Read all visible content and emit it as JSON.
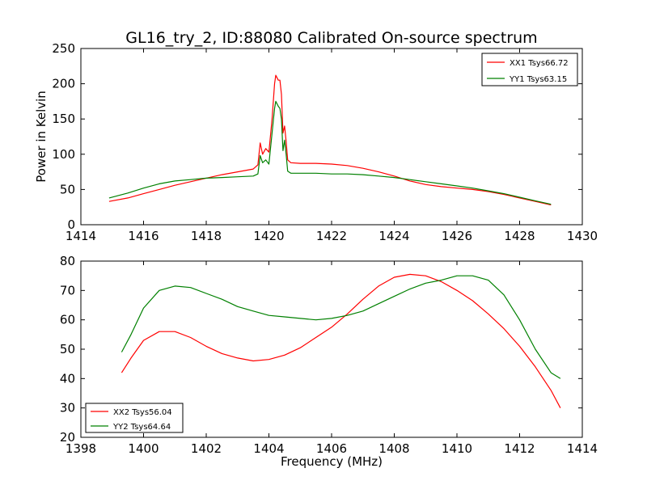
{
  "figure": {
    "title": "GL16_try_2, ID:88080 Calibrated On-source spectrum",
    "xlabel": "Frequency (MHz)"
  },
  "chart_data": [
    {
      "type": "line",
      "title": "GL16_try_2, ID:88080 Calibrated On-source spectrum",
      "xlabel": "",
      "ylabel": "Power in Kelvin",
      "xlim": [
        1414,
        1430
      ],
      "ylim": [
        0,
        250
      ],
      "xticks": [
        1414,
        1416,
        1418,
        1420,
        1422,
        1424,
        1426,
        1428,
        1430
      ],
      "yticks": [
        0,
        50,
        100,
        150,
        200,
        250
      ],
      "legend_position": "top-right",
      "grid": false,
      "series": [
        {
          "name": "XX1 Tsys66.72",
          "color": "#ff0000",
          "points": [
            [
              1414.9,
              33
            ],
            [
              1415.5,
              38
            ],
            [
              1416,
              44
            ],
            [
              1416.5,
              50
            ],
            [
              1417,
              56
            ],
            [
              1417.5,
              61
            ],
            [
              1418,
              66
            ],
            [
              1418.5,
              71
            ],
            [
              1419,
              75
            ],
            [
              1419.5,
              79
            ],
            [
              1419.65,
              85
            ],
            [
              1419.72,
              116
            ],
            [
              1419.8,
              100
            ],
            [
              1419.9,
              108
            ],
            [
              1420,
              103
            ],
            [
              1420.1,
              150
            ],
            [
              1420.18,
              200
            ],
            [
              1420.22,
              212
            ],
            [
              1420.3,
              205
            ],
            [
              1420.35,
              205
            ],
            [
              1420.4,
              185
            ],
            [
              1420.45,
              130
            ],
            [
              1420.5,
              140
            ],
            [
              1420.55,
              118
            ],
            [
              1420.6,
              92
            ],
            [
              1420.7,
              88
            ],
            [
              1421,
              87
            ],
            [
              1421.5,
              87
            ],
            [
              1422,
              86
            ],
            [
              1422.5,
              84
            ],
            [
              1423,
              80
            ],
            [
              1423.5,
              75
            ],
            [
              1424,
              69
            ],
            [
              1424.5,
              62
            ],
            [
              1425,
              57
            ],
            [
              1425.5,
              54
            ],
            [
              1426,
              52
            ],
            [
              1426.5,
              50
            ],
            [
              1427,
              47
            ],
            [
              1427.5,
              43
            ],
            [
              1428,
              38
            ],
            [
              1428.5,
              33
            ],
            [
              1429,
              28
            ]
          ]
        },
        {
          "name": "YY1 Tsys63.15",
          "color": "#008000",
          "points": [
            [
              1414.9,
              38
            ],
            [
              1415.5,
              45
            ],
            [
              1416,
              52
            ],
            [
              1416.5,
              58
            ],
            [
              1417,
              62
            ],
            [
              1417.5,
              64
            ],
            [
              1418,
              66
            ],
            [
              1418.5,
              67
            ],
            [
              1419,
              68
            ],
            [
              1419.5,
              69
            ],
            [
              1419.65,
              72
            ],
            [
              1419.72,
              98
            ],
            [
              1419.8,
              88
            ],
            [
              1419.9,
              92
            ],
            [
              1420,
              86
            ],
            [
              1420.1,
              130
            ],
            [
              1420.18,
              165
            ],
            [
              1420.22,
              175
            ],
            [
              1420.3,
              168
            ],
            [
              1420.35,
              165
            ],
            [
              1420.4,
              150
            ],
            [
              1420.45,
              105
            ],
            [
              1420.5,
              120
            ],
            [
              1420.55,
              100
            ],
            [
              1420.6,
              76
            ],
            [
              1420.7,
              73
            ],
            [
              1421,
              73
            ],
            [
              1421.5,
              73
            ],
            [
              1422,
              72
            ],
            [
              1422.5,
              72
            ],
            [
              1423,
              71
            ],
            [
              1423.5,
              69
            ],
            [
              1424,
              67
            ],
            [
              1424.5,
              64
            ],
            [
              1425,
              61
            ],
            [
              1425.5,
              58
            ],
            [
              1426,
              55
            ],
            [
              1426.5,
              52
            ],
            [
              1427,
              48
            ],
            [
              1427.5,
              44
            ],
            [
              1428,
              39
            ],
            [
              1428.5,
              34
            ],
            [
              1429,
              29
            ]
          ]
        }
      ]
    },
    {
      "type": "line",
      "title": "",
      "xlabel": "Frequency (MHz)",
      "ylabel": "",
      "xlim": [
        1398,
        1414
      ],
      "ylim": [
        20,
        80
      ],
      "xticks": [
        1398,
        1400,
        1402,
        1404,
        1406,
        1408,
        1410,
        1412,
        1414
      ],
      "yticks": [
        20,
        30,
        40,
        50,
        60,
        70,
        80
      ],
      "legend_position": "bottom-left",
      "grid": false,
      "series": [
        {
          "name": "XX2 Tsys56.04",
          "color": "#ff0000",
          "points": [
            [
              1399.3,
              42
            ],
            [
              1399.6,
              47
            ],
            [
              1400,
              53
            ],
            [
              1400.5,
              56
            ],
            [
              1401,
              56
            ],
            [
              1401.5,
              54
            ],
            [
              1402,
              51
            ],
            [
              1402.5,
              48.5
            ],
            [
              1403,
              47
            ],
            [
              1403.5,
              46
            ],
            [
              1404,
              46.5
            ],
            [
              1404.5,
              48
            ],
            [
              1405,
              50.5
            ],
            [
              1405.5,
              54
            ],
            [
              1406,
              57.5
            ],
            [
              1406.5,
              62
            ],
            [
              1407,
              67
            ],
            [
              1407.5,
              71.5
            ],
            [
              1408,
              74.5
            ],
            [
              1408.5,
              75.5
            ],
            [
              1409,
              75
            ],
            [
              1409.5,
              73
            ],
            [
              1410,
              70
            ],
            [
              1410.5,
              66.5
            ],
            [
              1411,
              62
            ],
            [
              1411.5,
              57
            ],
            [
              1412,
              51
            ],
            [
              1412.5,
              44
            ],
            [
              1413,
              36
            ],
            [
              1413.3,
              30
            ]
          ]
        },
        {
          "name": "YY2 Tsys64.64",
          "color": "#008000",
          "points": [
            [
              1399.3,
              49
            ],
            [
              1399.6,
              55
            ],
            [
              1400,
              64
            ],
            [
              1400.5,
              70
            ],
            [
              1401,
              71.5
            ],
            [
              1401.5,
              71
            ],
            [
              1402,
              69
            ],
            [
              1402.5,
              67
            ],
            [
              1403,
              64.5
            ],
            [
              1403.5,
              63
            ],
            [
              1404,
              61.5
            ],
            [
              1404.5,
              61
            ],
            [
              1405,
              60.5
            ],
            [
              1405.5,
              60
            ],
            [
              1406,
              60.5
            ],
            [
              1406.5,
              61.5
            ],
            [
              1407,
              63
            ],
            [
              1407.5,
              65.5
            ],
            [
              1408,
              68
            ],
            [
              1408.5,
              70.5
            ],
            [
              1409,
              72.5
            ],
            [
              1409.5,
              73.5
            ],
            [
              1410,
              75
            ],
            [
              1410.5,
              75
            ],
            [
              1411,
              73.5
            ],
            [
              1411.5,
              68.5
            ],
            [
              1412,
              60
            ],
            [
              1412.5,
              50
            ],
            [
              1413,
              42
            ],
            [
              1413.3,
              40
            ]
          ]
        }
      ]
    }
  ]
}
